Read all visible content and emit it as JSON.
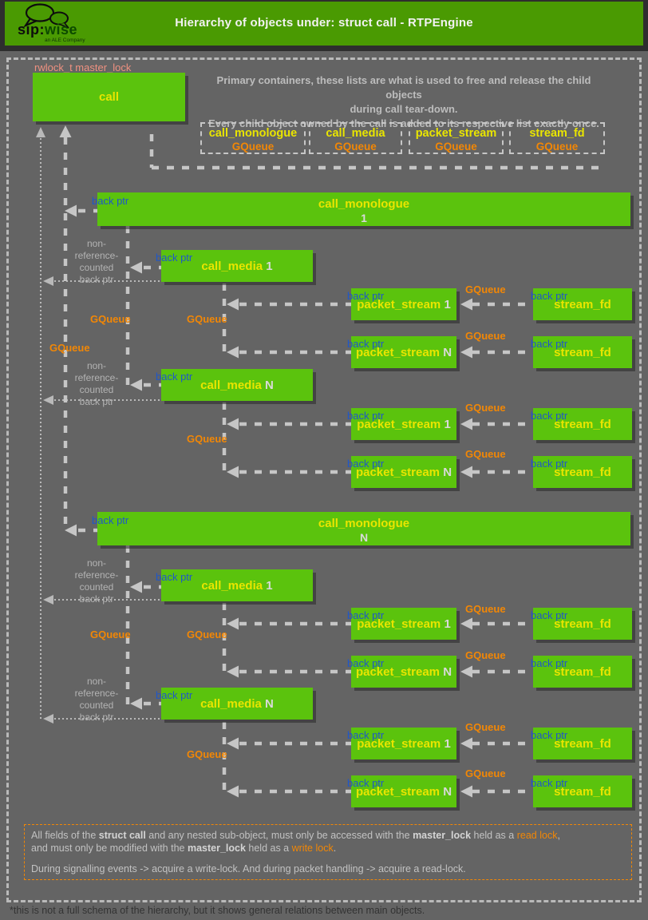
{
  "header": {
    "title": "Hierarchy of objects under: struct call - RTPEngine",
    "logo_sip": "sip:",
    "logo_wise": "wise",
    "logo_tagline": "an ALE Company"
  },
  "intro": {
    "line1": "Primary containers, these lists are what is used to free and release the child objects",
    "line2": "during call tear-down.",
    "line3": "Every child object owned by the call is added to its respective list exactly once."
  },
  "labels": {
    "master_lock": "rwlock_t master_lock",
    "back_ptr": "back ptr",
    "gqueue": "GQueue",
    "non_ref": "non-\nreference-\ncounted\nback ptr"
  },
  "names": {
    "call": "call",
    "call_monologue": "call_monologue",
    "call_media": "call_media",
    "packet_stream": "packet_stream",
    "stream_fd": "stream_fd"
  },
  "subs": {
    "one": "1",
    "n": "N"
  },
  "note": {
    "l1_pre": "All fields of the ",
    "l1_bold1": "struct call",
    "l1_mid1": " and any nested sub-object, must only be accessed with the ",
    "l1_bold2": "master_lock",
    "l1_mid2": " held as a ",
    "l1_orange": "read lock",
    "l1_end": ",",
    "l2_pre": "and must only be modified with the ",
    "l2_bold1": "master_lock",
    "l2_mid1": " held as a ",
    "l2_orange": "write lock",
    "l2_end": ".",
    "l3": "During signalling events -> acquire a write-lock. And during packet handling -> acquire a read-lock."
  },
  "footer": "*this is not a full schema of the hierarchy, but it shows general relations between main objects.",
  "colors": {
    "header_green": "#4a9a02",
    "box_green": "#5bc30d",
    "label_yellow": "#e9e500",
    "label_orange": "#f28705",
    "label_blue": "#1f57c9",
    "label_salmon": "#ef9180"
  }
}
